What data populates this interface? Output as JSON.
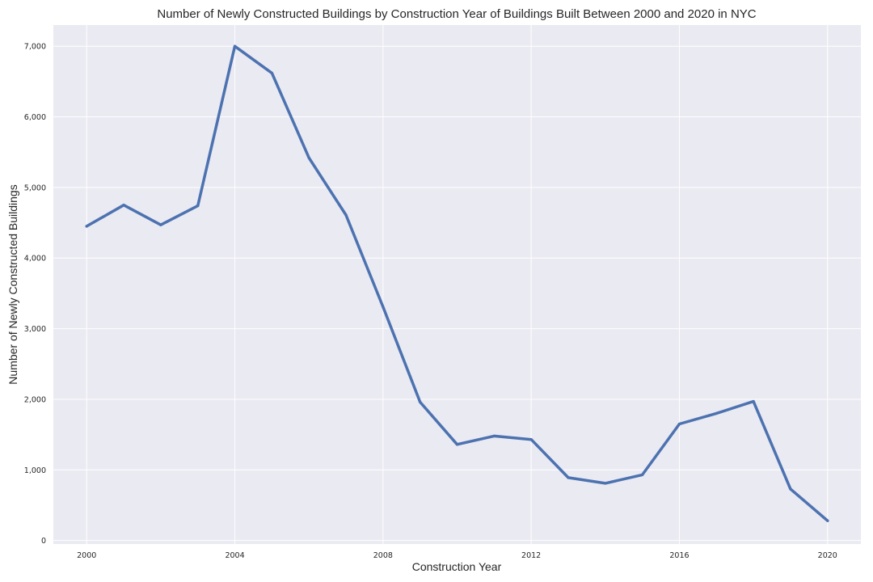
{
  "chart_data": {
    "type": "line",
    "title": "Number of Newly Constructed Buildings by Construction Year of Buildings Built Between 2000 and 2020 in NYC",
    "xlabel": "Construction Year",
    "ylabel": "Number of Newly Constructed Buildings",
    "x": [
      2000,
      2001,
      2002,
      2003,
      2004,
      2005,
      2006,
      2007,
      2008,
      2009,
      2010,
      2011,
      2012,
      2013,
      2014,
      2015,
      2016,
      2017,
      2018,
      2019,
      2020
    ],
    "series": [
      {
        "values": [
          4450,
          4750,
          4470,
          4740,
          7000,
          6620,
          5420,
          4610,
          3310,
          1960,
          1360,
          1480,
          1430,
          890,
          810,
          930,
          1650,
          1800,
          1970,
          730,
          280
        ]
      }
    ],
    "xlim": [
      1999.1,
      2020.9
    ],
    "ylim": [
      -50,
      7300
    ],
    "x_ticks": [
      2000,
      2004,
      2008,
      2012,
      2016,
      2020
    ],
    "x_tick_labels": [
      "2000",
      "2004",
      "2008",
      "2012",
      "2016",
      "2020"
    ],
    "y_ticks": [
      0,
      1000,
      2000,
      3000,
      4000,
      5000,
      6000,
      7000
    ],
    "y_tick_labels": [
      "0",
      "1,000",
      "2,000",
      "3,000",
      "4,000",
      "5,000",
      "6,000",
      "7,000"
    ],
    "grid": true,
    "colors": {
      "background": "#eaeaf2",
      "line": "#4c72b0",
      "grid": "#ffffff"
    }
  }
}
